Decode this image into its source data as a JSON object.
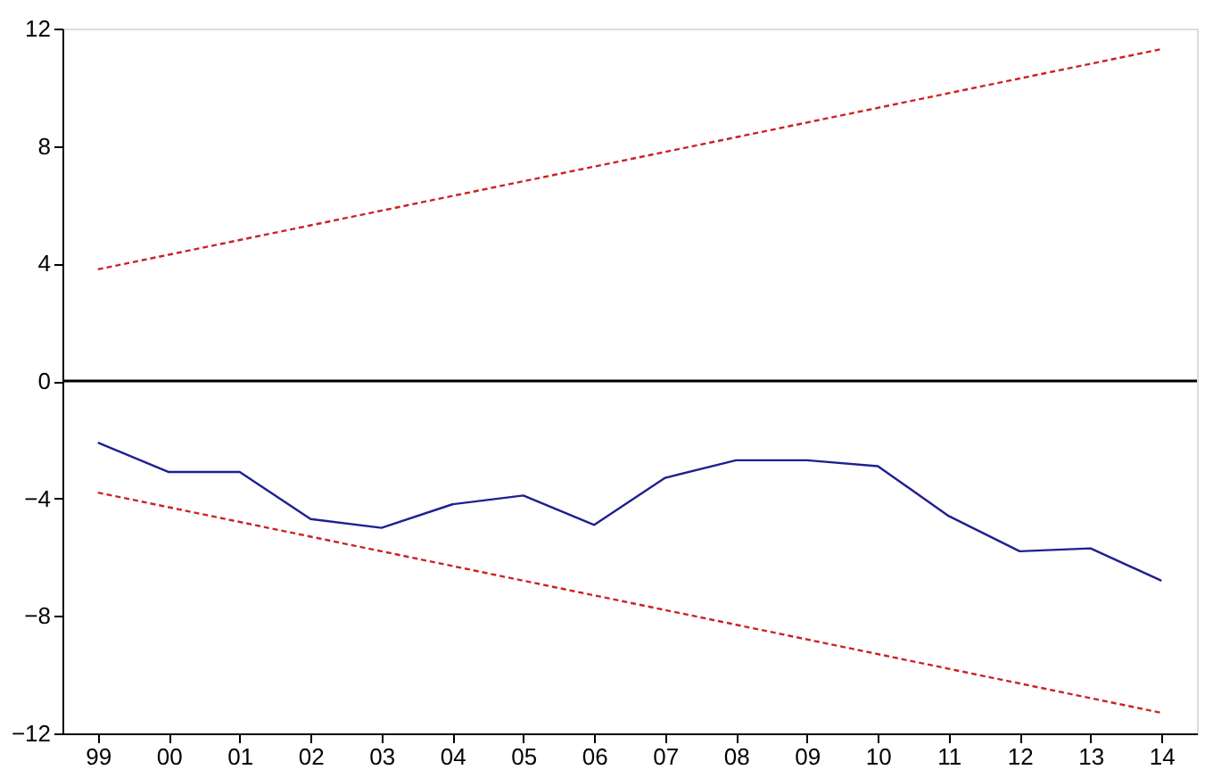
{
  "chart_data": {
    "type": "line",
    "categories": [
      "99",
      "00",
      "01",
      "02",
      "03",
      "04",
      "05",
      "06",
      "07",
      "08",
      "09",
      "10",
      "11",
      "12",
      "13",
      "14"
    ],
    "series": [
      {
        "color": "#1f1f8f",
        "line_style": "solid",
        "values": [
          -2.1,
          -3.1,
          -3.1,
          -4.7,
          -5.0,
          -4.2,
          -3.9,
          -4.9,
          -3.3,
          -2.7,
          -2.7,
          -2.9,
          -4.6,
          -5.8,
          -5.7,
          -6.8
        ]
      },
      {
        "color": "#cc2222",
        "line_style": "dashed",
        "values": [
          3.8,
          4.3,
          4.8,
          5.3,
          5.8,
          6.3,
          6.8,
          7.3,
          7.8,
          8.3,
          8.8,
          9.3,
          9.8,
          10.3,
          10.8,
          11.3
        ]
      },
      {
        "color": "#cc2222",
        "line_style": "dashed",
        "values": [
          -3.8,
          -4.3,
          -4.8,
          -5.3,
          -5.8,
          -6.3,
          -6.8,
          -7.3,
          -7.8,
          -8.3,
          -8.8,
          -9.3,
          -9.8,
          -10.3,
          -10.8,
          -11.3
        ]
      }
    ],
    "ylim": [
      -12,
      12
    ],
    "yticks": [
      -12,
      -8,
      -4,
      0,
      4,
      8,
      12
    ],
    "ref_lines": [
      {
        "axis": "y",
        "value": 0,
        "color": "#000000"
      }
    ],
    "grid": false,
    "marker": "none"
  }
}
